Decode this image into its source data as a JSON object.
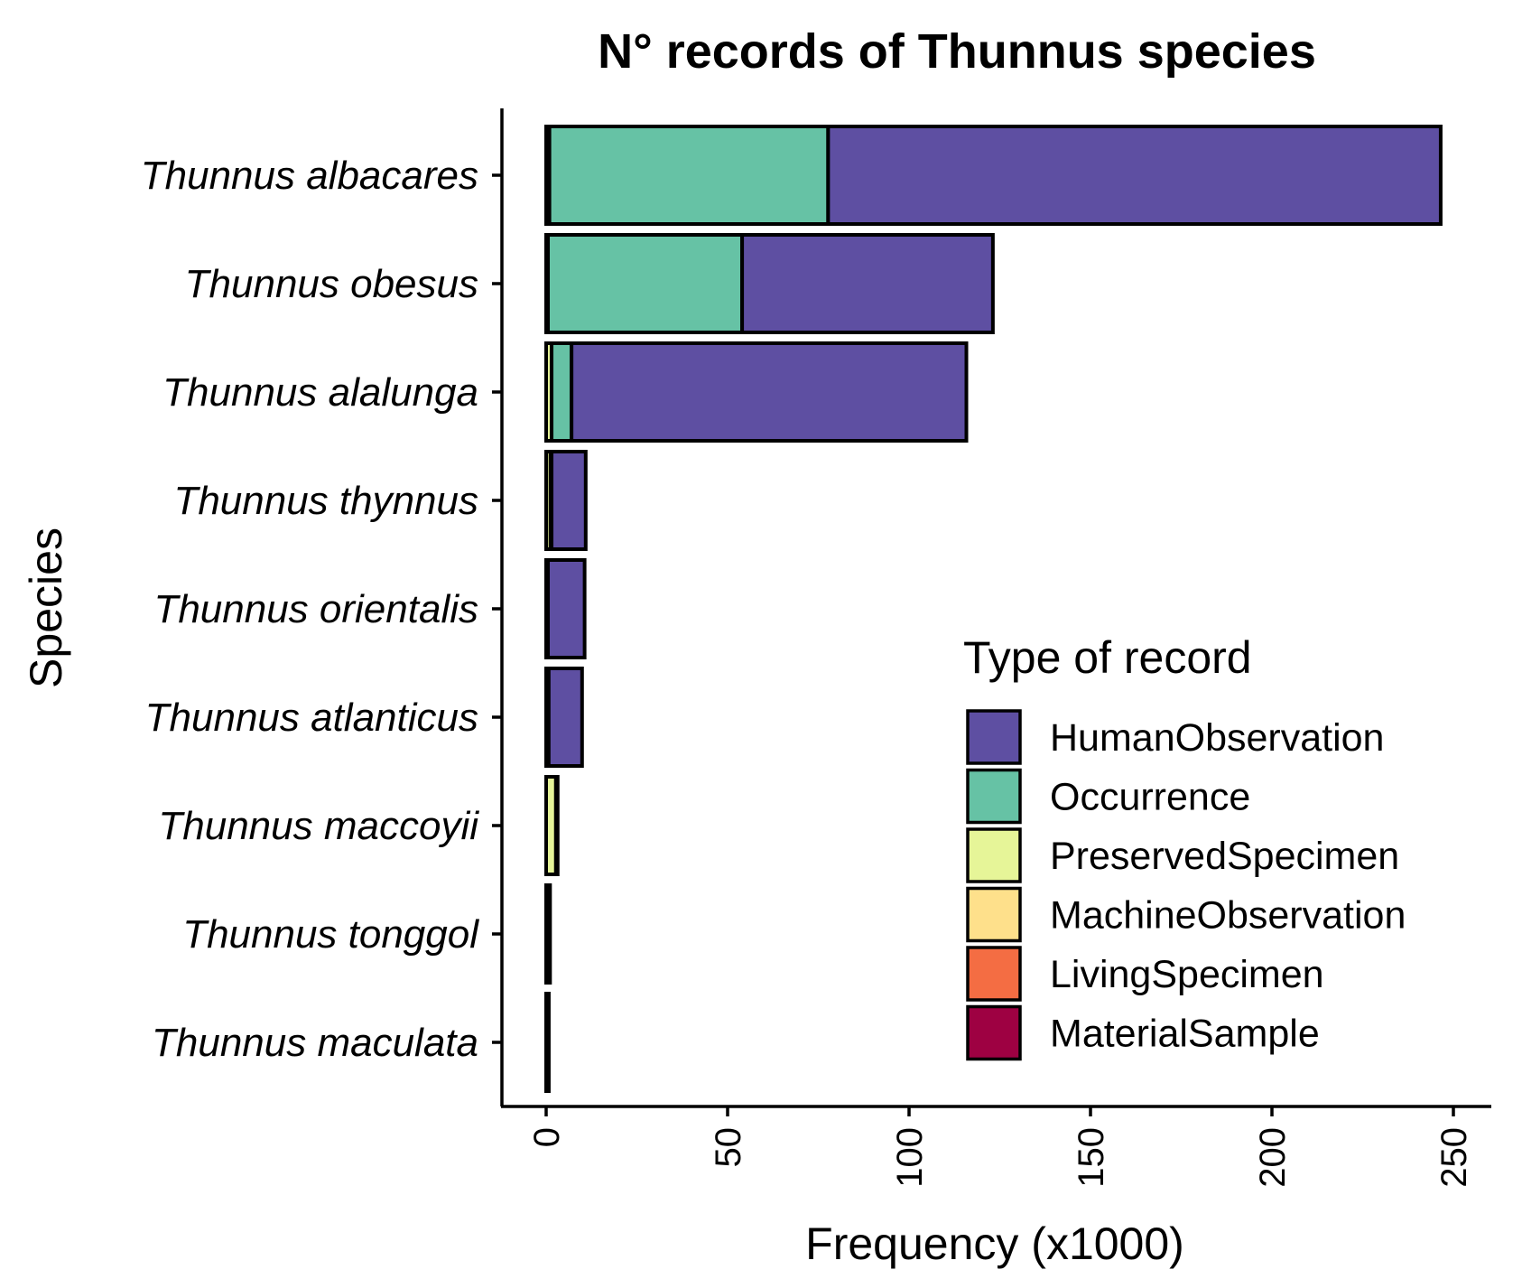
{
  "chart_data": {
    "type": "bar",
    "orientation": "horizontal",
    "stacked": true,
    "title": "N° records of Thunnus species",
    "xlabel": "Frequency (x1000)",
    "ylabel": "Species",
    "xlim": [
      -12,
      259
    ],
    "xticks": [
      0,
      50,
      100,
      150,
      200,
      250
    ],
    "grid": false,
    "legend_position": "bottom-right",
    "categories": [
      "Thunnus albacares",
      "Thunnus obesus",
      "Thunnus alalunga",
      "Thunnus thynnus",
      "Thunnus orientalis",
      "Thunnus atlanticus",
      "Thunnus maccoyii",
      "Thunnus tonggol",
      "Thunnus maculata"
    ],
    "legend": {
      "title": "Type of record",
      "items": [
        {
          "label": "HumanObservation",
          "color": "#5E4FA2"
        },
        {
          "label": "Occurrence",
          "color": "#66C2A5"
        },
        {
          "label": "PreservedSpecimen",
          "color": "#E6F598"
        },
        {
          "label": "MachineObservation",
          "color": "#FEE08B"
        },
        {
          "label": "LivingSpecimen",
          "color": "#F46D43"
        },
        {
          "label": "MaterialSample",
          "color": "#9E0142"
        }
      ]
    },
    "series": [
      {
        "name": "MaterialSample",
        "color": "#9E0142",
        "values": [
          0,
          0,
          0,
          0,
          0,
          0,
          0,
          0,
          0
        ]
      },
      {
        "name": "LivingSpecimen",
        "color": "#F46D43",
        "values": [
          0,
          0,
          0,
          0,
          0,
          0,
          0,
          0,
          0
        ]
      },
      {
        "name": "MachineObservation",
        "color": "#FEE08B",
        "values": [
          0,
          0,
          0,
          0,
          0,
          0,
          0,
          0,
          0
        ]
      },
      {
        "name": "PreservedSpecimen",
        "color": "#E6F598",
        "values": [
          0.9,
          0.5,
          1.5,
          1.2,
          0.4,
          0.6,
          2.7,
          0.6,
          0.3
        ]
      },
      {
        "name": "Occurrence",
        "color": "#66C2A5",
        "values": [
          76.8,
          53.5,
          5.5,
          0.3,
          0.1,
          0.1,
          0.1,
          0.1,
          0.05
        ]
      },
      {
        "name": "HumanObservation",
        "color": "#5E4FA2",
        "values": [
          168.8,
          69.1,
          108.8,
          9.4,
          10.1,
          9.2,
          0.3,
          0.2,
          0.05
        ]
      }
    ]
  }
}
